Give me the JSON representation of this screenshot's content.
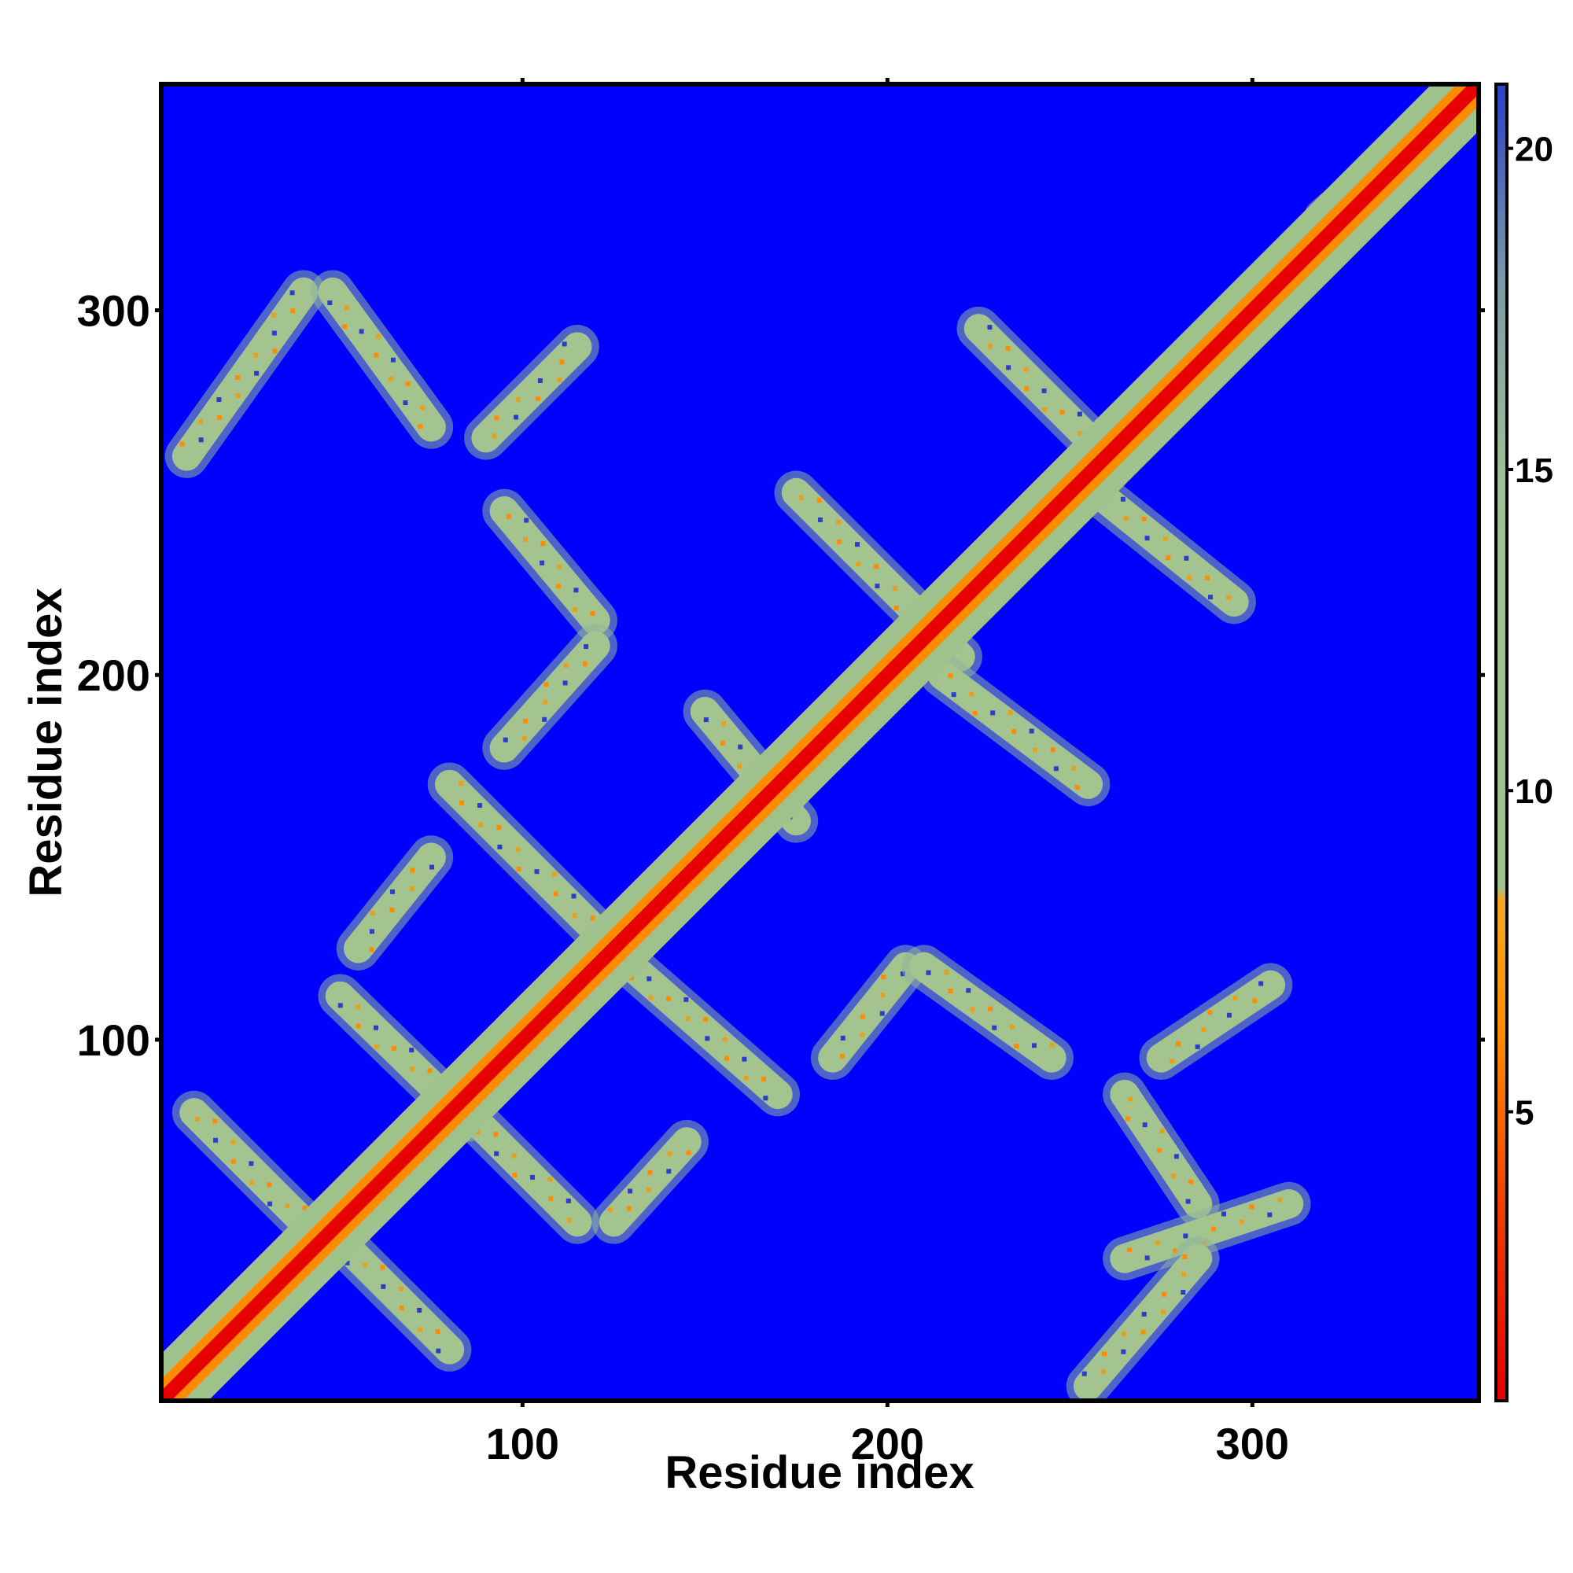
{
  "chart_data": {
    "type": "heatmap",
    "title": "",
    "xlabel": "Residue index",
    "ylabel": "Residue index",
    "xlim": [
      1,
      362
    ],
    "ylim": [
      1,
      362
    ],
    "x_ticks": [
      100,
      200,
      300
    ],
    "y_ticks": [
      100,
      200,
      300
    ],
    "grid": false,
    "colorbar": {
      "ticks": [
        5,
        10,
        15,
        20
      ],
      "range": [
        0.5,
        21
      ],
      "colors": {
        "low": "#e60000",
        "mid_low": "#ff8c00",
        "mid": "#9fc28c",
        "mid_high": "#7a9aa8",
        "high": "#0000ff"
      }
    },
    "background_value": 21,
    "diagonal": {
      "value_on_axis": 2,
      "band_width_residues": 7
    },
    "contact_bands": [
      {
        "x": [
          8,
          40
        ],
        "y": [
          260,
          305
        ],
        "direction": "anti"
      },
      {
        "x": [
          48,
          75
        ],
        "y": [
          305,
          268
        ],
        "direction": "diag"
      },
      {
        "x": [
          90,
          115
        ],
        "y": [
          265,
          290
        ],
        "direction": "anti"
      },
      {
        "x": [
          95,
          120
        ],
        "y": [
          245,
          215
        ],
        "direction": "diag"
      },
      {
        "x": [
          95,
          120
        ],
        "y": [
          180,
          208
        ],
        "direction": "anti"
      },
      {
        "x": [
          80,
          125
        ],
        "y": [
          170,
          125
        ],
        "direction": "diag"
      },
      {
        "x": [
          55,
          75
        ],
        "y": [
          125,
          150
        ],
        "direction": "anti"
      },
      {
        "x": [
          50,
          85
        ],
        "y": [
          112,
          78
        ],
        "direction": "diag"
      },
      {
        "x": [
          10,
          45
        ],
        "y": [
          80,
          45
        ],
        "direction": "diag"
      },
      {
        "x": [
          50,
          80
        ],
        "y": [
          45,
          15
        ],
        "direction": "diag"
      },
      {
        "x": [
          85,
          115
        ],
        "y": [
          80,
          50
        ],
        "direction": "diag"
      },
      {
        "x": [
          125,
          145
        ],
        "y": [
          50,
          72
        ],
        "direction": "anti"
      },
      {
        "x": [
          130,
          170
        ],
        "y": [
          120,
          85
        ],
        "direction": "diag"
      },
      {
        "x": [
          150,
          175
        ],
        "y": [
          190,
          160
        ],
        "direction": "diag"
      },
      {
        "x": [
          175,
          220
        ],
        "y": [
          250,
          205
        ],
        "direction": "diag"
      },
      {
        "x": [
          215,
          255
        ],
        "y": [
          200,
          170
        ],
        "direction": "diag"
      },
      {
        "x": [
          225,
          260
        ],
        "y": [
          295,
          260
        ],
        "direction": "diag"
      },
      {
        "x": [
          255,
          295
        ],
        "y": [
          252,
          220
        ],
        "direction": "diag"
      },
      {
        "x": [
          185,
          205
        ],
        "y": [
          95,
          120
        ],
        "direction": "anti"
      },
      {
        "x": [
          210,
          245
        ],
        "y": [
          120,
          95
        ],
        "direction": "diag"
      },
      {
        "x": [
          265,
          285
        ],
        "y": [
          85,
          55
        ],
        "direction": "diag"
      },
      {
        "x": [
          265,
          310
        ],
        "y": [
          40,
          55
        ],
        "direction": "anti"
      },
      {
        "x": [
          255,
          285
        ],
        "y": [
          5,
          40
        ],
        "direction": "anti"
      },
      {
        "x": [
          275,
          305
        ],
        "y": [
          95,
          115
        ],
        "direction": "anti"
      },
      {
        "x": [
          320,
          355
        ],
        "y": [
          325,
          355
        ],
        "direction": "anti"
      }
    ]
  }
}
